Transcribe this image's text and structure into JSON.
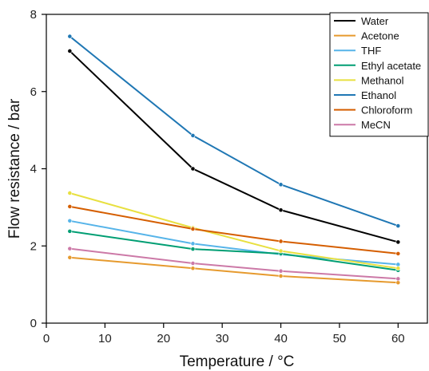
{
  "chart_data": {
    "type": "line",
    "xlabel": "Temperature / °C",
    "ylabel": "Flow resistance / bar",
    "xlim": [
      0,
      65
    ],
    "ylim": [
      0,
      8
    ],
    "xticks": [
      0,
      10,
      20,
      30,
      40,
      50,
      60
    ],
    "yticks": [
      0,
      2,
      4,
      6,
      8
    ],
    "grid": false,
    "legend_position": "top-right",
    "x": [
      4,
      25,
      40,
      60
    ],
    "series": [
      {
        "name": "Water",
        "color": "#000000",
        "values": [
          7.05,
          4.0,
          2.93,
          2.1
        ]
      },
      {
        "name": "Acetone",
        "color": "#e69a2e",
        "values": [
          1.7,
          1.42,
          1.22,
          1.05
        ]
      },
      {
        "name": "THF",
        "color": "#56b4e9",
        "values": [
          2.65,
          2.06,
          1.78,
          1.52
        ]
      },
      {
        "name": "Ethyl acetate",
        "color": "#009e73",
        "values": [
          2.38,
          1.92,
          1.8,
          1.37
        ]
      },
      {
        "name": "Methanol",
        "color": "#e8e040",
        "values": [
          3.37,
          2.47,
          1.87,
          1.42
        ]
      },
      {
        "name": "Ethanol",
        "color": "#1f77b4",
        "values": [
          7.43,
          4.86,
          3.59,
          2.52
        ]
      },
      {
        "name": "Chloroform",
        "color": "#d55e00",
        "values": [
          3.02,
          2.44,
          2.12,
          1.8
        ]
      },
      {
        "name": "MeCN",
        "color": "#cc79a7",
        "values": [
          1.93,
          1.55,
          1.35,
          1.15
        ]
      }
    ]
  }
}
